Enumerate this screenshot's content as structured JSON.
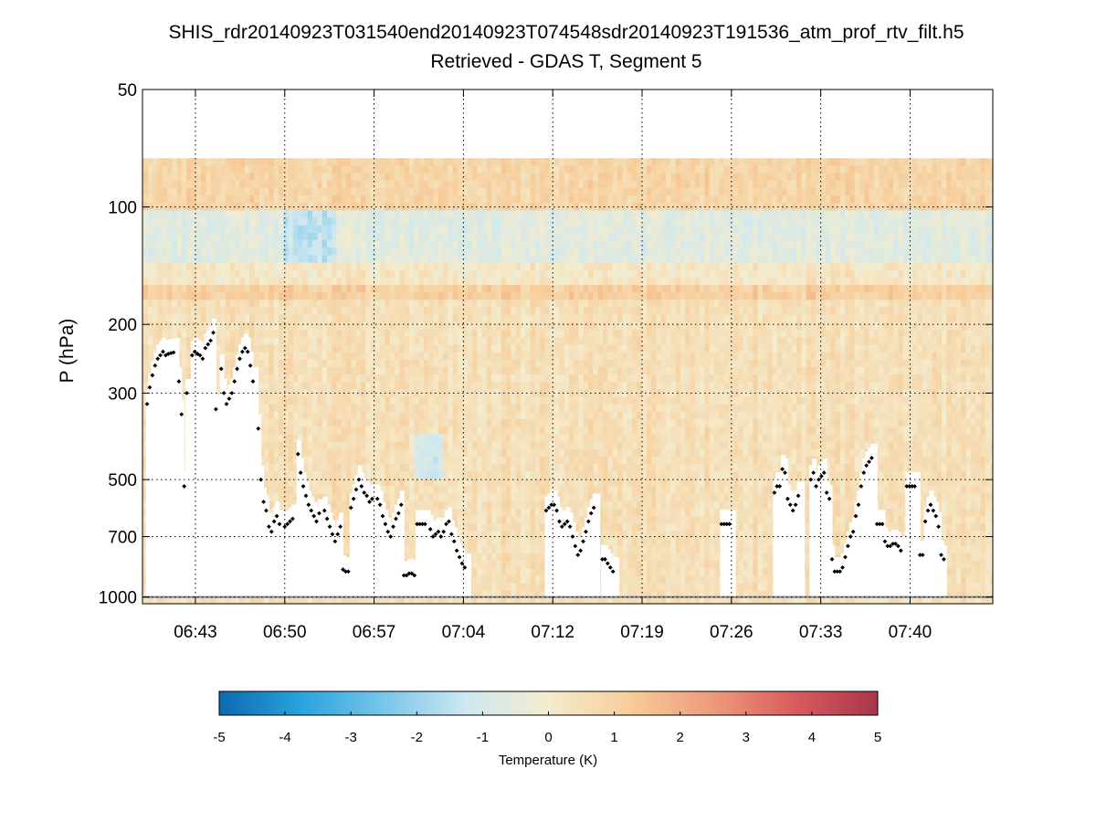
{
  "chart_data": {
    "type": "heatmap",
    "title": "SHIS_rdr20140923T031540end20140923T074548sdr20140923T191536_atm_prof_rtv_filt.h5",
    "subtitle": "Retrieved - GDAS T, Segment 5",
    "ylabel": "P (hPa)",
    "xlabel": "",
    "y_scale": "log",
    "y_direction": "reversed",
    "ylim": [
      50,
      1040
    ],
    "y_ticks": [
      {
        "value": 50,
        "label": "50"
      },
      {
        "value": 100,
        "label": "100"
      },
      {
        "value": 200,
        "label": "200"
      },
      {
        "value": 300,
        "label": "300"
      },
      {
        "value": 500,
        "label": "500"
      },
      {
        "value": 700,
        "label": "700"
      },
      {
        "value": 1000,
        "label": "1000"
      }
    ],
    "x_range_minutes": [
      637.5,
      766.0
    ],
    "x_ticks": [
      {
        "value": 645.5,
        "label": "06:43"
      },
      {
        "value": 659.0,
        "label": "06:50"
      },
      {
        "value": 672.5,
        "label": "06:57"
      },
      {
        "value": 686.0,
        "label": "07:04"
      },
      {
        "value": 699.5,
        "label": "07:12"
      },
      {
        "value": 713.0,
        "label": "07:19"
      },
      {
        "value": 726.5,
        "label": "07:26"
      },
      {
        "value": 740.0,
        "label": "07:33"
      },
      {
        "value": 753.5,
        "label": "07:40"
      }
    ],
    "grid": true,
    "colorbar": {
      "label": "Temperature (K)",
      "min": -5,
      "max": 5,
      "ticks": [
        -5,
        -4,
        -3,
        -2,
        -1,
        0,
        1,
        2,
        3,
        4,
        5
      ],
      "colormap": [
        "#0b6ab0",
        "#29a3dd",
        "#78c6ea",
        "#cde8f0",
        "#f4ecce",
        "#f7cc98",
        "#ee9a7b",
        "#d95b5e",
        "#a8354a"
      ],
      "orientation": "horizontal"
    },
    "field_layers": [
      {
        "p_top": 75,
        "p_bottom": 100,
        "approx_value": 0.9
      },
      {
        "p_top": 100,
        "p_bottom": 140,
        "approx_value": -0.6
      },
      {
        "p_top": 140,
        "p_bottom": 160,
        "approx_value": 0.2
      },
      {
        "p_top": 160,
        "p_bottom": 175,
        "approx_value": 1.1
      },
      {
        "p_top": 175,
        "p_bottom": 1040,
        "approx_value": 0.5
      }
    ],
    "cloud_top_series": {
      "name": "cloud top pressure (hPa)",
      "points": [
        [
          638.2,
          320
        ],
        [
          638.6,
          290
        ],
        [
          639.0,
          270
        ],
        [
          639.4,
          255
        ],
        [
          639.8,
          245
        ],
        [
          640.2,
          240
        ],
        [
          640.6,
          235
        ],
        [
          641.0,
          240
        ],
        [
          641.4,
          238
        ],
        [
          641.8,
          237
        ],
        [
          642.2,
          236
        ],
        [
          643.0,
          280
        ],
        [
          643.4,
          340
        ],
        [
          643.8,
          520
        ],
        [
          644.2,
          300
        ],
        [
          645.0,
          240
        ],
        [
          645.4,
          235
        ],
        [
          645.8,
          238
        ],
        [
          646.2,
          240
        ],
        [
          646.6,
          245
        ],
        [
          647.0,
          230
        ],
        [
          647.4,
          225
        ],
        [
          647.8,
          220
        ],
        [
          648.2,
          210
        ],
        [
          648.6,
          330
        ],
        [
          649.4,
          260
        ],
        [
          649.8,
          300
        ],
        [
          650.2,
          320
        ],
        [
          650.6,
          310
        ],
        [
          651.0,
          300
        ],
        [
          651.4,
          280
        ],
        [
          651.8,
          260
        ],
        [
          652.2,
          245
        ],
        [
          652.6,
          235
        ],
        [
          653.0,
          230
        ],
        [
          653.4,
          235
        ],
        [
          653.8,
          255
        ],
        [
          654.2,
          280
        ],
        [
          655.0,
          370
        ],
        [
          655.4,
          500
        ],
        [
          655.8,
          570
        ],
        [
          656.2,
          600
        ],
        [
          656.6,
          660
        ],
        [
          657.0,
          680
        ],
        [
          657.4,
          640
        ],
        [
          657.8,
          620
        ],
        [
          658.2,
          650
        ],
        [
          659.0,
          660
        ],
        [
          659.4,
          650
        ],
        [
          659.8,
          640
        ],
        [
          660.2,
          630
        ],
        [
          661.0,
          430
        ],
        [
          661.4,
          480
        ],
        [
          661.8,
          520
        ],
        [
          662.2,
          550
        ],
        [
          662.6,
          580
        ],
        [
          663.0,
          600
        ],
        [
          663.4,
          620
        ],
        [
          663.8,
          640
        ],
        [
          664.2,
          610
        ],
        [
          665.0,
          600
        ],
        [
          665.4,
          630
        ],
        [
          665.8,
          660
        ],
        [
          666.2,
          690
        ],
        [
          666.6,
          720
        ],
        [
          667.0,
          690
        ],
        [
          667.4,
          660
        ],
        [
          667.8,
          850
        ],
        [
          668.2,
          860
        ],
        [
          668.6,
          860
        ],
        [
          669.0,
          590
        ],
        [
          669.4,
          560
        ],
        [
          669.8,
          530
        ],
        [
          670.2,
          500
        ],
        [
          670.6,
          520
        ],
        [
          671.0,
          540
        ],
        [
          671.4,
          550
        ],
        [
          671.8,
          570
        ],
        [
          672.2,
          560
        ],
        [
          673.0,
          560
        ],
        [
          673.4,
          580
        ],
        [
          673.8,
          620
        ],
        [
          674.2,
          650
        ],
        [
          674.6,
          680
        ],
        [
          675.0,
          700
        ],
        [
          675.4,
          660
        ],
        [
          675.8,
          630
        ],
        [
          676.2,
          610
        ],
        [
          676.6,
          580
        ],
        [
          677.0,
          880
        ],
        [
          677.4,
          880
        ],
        [
          677.8,
          870
        ],
        [
          678.2,
          870
        ],
        [
          678.6,
          880
        ],
        [
          679.0,
          650
        ],
        [
          679.4,
          650
        ],
        [
          679.8,
          650
        ],
        [
          680.2,
          650
        ],
        [
          681.0,
          670
        ],
        [
          681.4,
          700
        ],
        [
          681.8,
          690
        ],
        [
          682.2,
          680
        ],
        [
          682.6,
          700
        ],
        [
          683.0,
          680
        ],
        [
          683.4,
          650
        ],
        [
          683.8,
          640
        ],
        [
          684.2,
          690
        ],
        [
          684.6,
          720
        ],
        [
          685.0,
          760
        ],
        [
          685.4,
          790
        ],
        [
          685.8,
          820
        ],
        [
          686.2,
          840
        ],
        [
          698.5,
          600
        ],
        [
          698.9,
          590
        ],
        [
          699.3,
          580
        ],
        [
          699.7,
          580
        ],
        [
          700.1,
          600
        ],
        [
          700.5,
          640
        ],
        [
          700.9,
          660
        ],
        [
          701.3,
          650
        ],
        [
          701.7,
          640
        ],
        [
          702.1,
          660
        ],
        [
          702.5,
          700
        ],
        [
          702.9,
          740
        ],
        [
          703.3,
          780
        ],
        [
          703.7,
          760
        ],
        [
          704.1,
          720
        ],
        [
          704.5,
          680
        ],
        [
          704.9,
          640
        ],
        [
          705.3,
          610
        ],
        [
          705.7,
          590
        ],
        [
          707.0,
          800
        ],
        [
          707.4,
          800
        ],
        [
          707.8,
          820
        ],
        [
          708.2,
          840
        ],
        [
          708.6,
          860
        ],
        [
          725.0,
          650
        ],
        [
          725.4,
          650
        ],
        [
          725.8,
          650
        ],
        [
          726.2,
          650
        ],
        [
          733.0,
          540
        ],
        [
          733.4,
          520
        ],
        [
          733.8,
          520
        ],
        [
          734.2,
          470
        ],
        [
          734.6,
          480
        ],
        [
          735.0,
          560
        ],
        [
          735.4,
          580
        ],
        [
          735.8,
          600
        ],
        [
          736.2,
          580
        ],
        [
          736.6,
          550
        ],
        [
          738.5,
          500
        ],
        [
          738.9,
          480
        ],
        [
          739.3,
          520
        ],
        [
          739.7,
          500
        ],
        [
          740.1,
          490
        ],
        [
          740.5,
          480
        ],
        [
          740.9,
          540
        ],
        [
          741.3,
          560
        ],
        [
          741.7,
          800
        ],
        [
          742.1,
          860
        ],
        [
          742.5,
          860
        ],
        [
          742.9,
          860
        ],
        [
          743.3,
          840
        ],
        [
          743.7,
          790
        ],
        [
          744.1,
          740
        ],
        [
          744.5,
          700
        ],
        [
          744.9,
          680
        ],
        [
          745.3,
          620
        ],
        [
          745.7,
          580
        ],
        [
          746.1,
          520
        ],
        [
          746.5,
          480
        ],
        [
          746.9,
          460
        ],
        [
          747.3,
          450
        ],
        [
          747.7,
          440
        ],
        [
          748.5,
          650
        ],
        [
          748.9,
          650
        ],
        [
          749.3,
          650
        ],
        [
          749.7,
          720
        ],
        [
          750.1,
          740
        ],
        [
          750.5,
          740
        ],
        [
          750.9,
          730
        ],
        [
          751.3,
          730
        ],
        [
          751.7,
          740
        ],
        [
          752.1,
          760
        ],
        [
          753.0,
          520
        ],
        [
          753.4,
          520
        ],
        [
          753.8,
          520
        ],
        [
          754.2,
          520
        ],
        [
          755.0,
          780
        ],
        [
          755.4,
          780
        ],
        [
          755.8,
          640
        ],
        [
          756.2,
          600
        ],
        [
          756.6,
          580
        ],
        [
          757.0,
          600
        ],
        [
          757.4,
          620
        ],
        [
          757.8,
          660
        ],
        [
          758.2,
          780
        ],
        [
          758.6,
          800
        ]
      ]
    },
    "surface_series": {
      "name": "surface pressure (hPa)",
      "approx_value": 1000
    }
  }
}
